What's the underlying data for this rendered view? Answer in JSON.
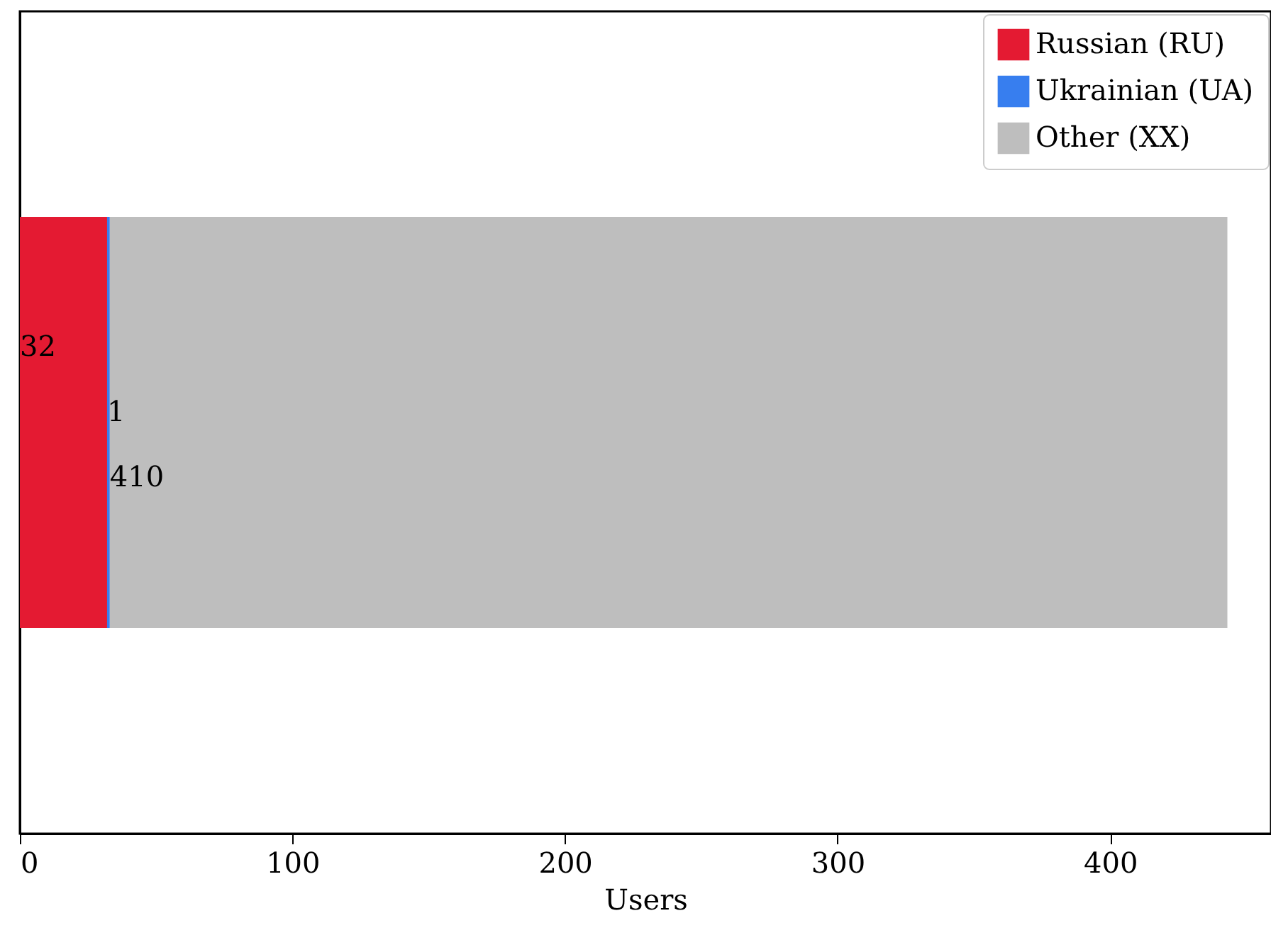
{
  "chart_data": {
    "type": "bar",
    "orientation": "horizontal",
    "stacked": true,
    "categories": [
      null
    ],
    "xlabel": "Users",
    "xlim": [
      0,
      459
    ],
    "xticks": [
      0,
      100,
      200,
      300,
      400
    ],
    "tick_labels": "x",
    "data_labels": true,
    "legend": "top right",
    "series": [
      {
        "name": "Russian (RU)",
        "color": "#e41a32",
        "values": [
          32
        ]
      },
      {
        "name": "Ukrainian (UA)",
        "color": "#377eef",
        "values": [
          1
        ]
      },
      {
        "name": "Other (XX)",
        "color": "#bebebe",
        "values": [
          410
        ]
      }
    ]
  }
}
